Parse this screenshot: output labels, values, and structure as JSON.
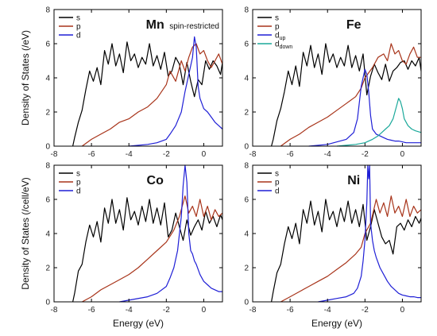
{
  "chart_data": [
    {
      "type": "line",
      "title": "Mn",
      "subtitle": "spin-restricted",
      "xlabel": "",
      "ylabel": "Density of States (/eV)",
      "xlim": [
        -8,
        1
      ],
      "ylim": [
        0,
        8
      ],
      "xticks": [
        "-8",
        "-6",
        "-4",
        "-2",
        "0"
      ],
      "yticks": [
        "0",
        "2",
        "4",
        "6",
        "8"
      ],
      "legend_position": "top-left",
      "series": [
        {
          "name": "s",
          "color": "#000000",
          "x": [
            -7.0,
            -6.9,
            -6.7,
            -6.5,
            -6.3,
            -6.1,
            -5.9,
            -5.7,
            -5.5,
            -5.3,
            -5.1,
            -4.9,
            -4.7,
            -4.5,
            -4.3,
            -4.1,
            -3.9,
            -3.7,
            -3.5,
            -3.3,
            -3.1,
            -2.9,
            -2.7,
            -2.5,
            -2.3,
            -2.1,
            -1.9,
            -1.7,
            -1.5,
            -1.3,
            -1.1,
            -0.9,
            -0.7,
            -0.5,
            -0.3,
            -0.1,
            0.1,
            0.3,
            0.5,
            0.7,
            0.9,
            1.0
          ],
          "y": [
            0.0,
            0.5,
            1.4,
            2.1,
            3.3,
            4.4,
            3.8,
            4.6,
            3.6,
            5.6,
            4.8,
            6.0,
            4.7,
            5.4,
            4.3,
            6.1,
            5.0,
            5.4,
            4.6,
            5.2,
            4.8,
            6.0,
            4.7,
            5.3,
            4.5,
            5.5,
            4.1,
            4.4,
            5.2,
            4.8,
            3.6,
            4.9,
            3.8,
            2.9,
            3.9,
            3.6,
            5.0,
            4.5,
            5.0,
            4.7,
            4.2,
            4.9
          ]
        },
        {
          "name": "p",
          "color": "#a8341a",
          "x": [
            -6.5,
            -6.0,
            -5.5,
            -5.0,
            -4.5,
            -4.0,
            -3.5,
            -3.0,
            -2.5,
            -2.0,
            -1.8,
            -1.5,
            -1.2,
            -1.0,
            -0.8,
            -0.6,
            -0.4,
            -0.2,
            0.0,
            0.2,
            0.4,
            0.6,
            0.8,
            1.0
          ],
          "y": [
            0.0,
            0.4,
            0.7,
            1.0,
            1.4,
            1.6,
            2.0,
            2.3,
            2.8,
            3.6,
            4.4,
            3.8,
            5.0,
            4.4,
            5.2,
            5.8,
            6.0,
            5.4,
            5.6,
            5.0,
            4.6,
            5.0,
            5.4,
            4.8
          ]
        },
        {
          "name": "d",
          "color": "#1f1fd6",
          "x": [
            -4.0,
            -3.0,
            -2.5,
            -2.0,
            -1.8,
            -1.5,
            -1.2,
            -1.0,
            -0.8,
            -0.6,
            -0.5,
            -0.4,
            -0.3,
            -0.2,
            -0.1,
            0.0,
            0.2,
            0.4,
            0.6,
            0.8,
            1.0
          ],
          "y": [
            0.0,
            0.1,
            0.2,
            0.4,
            0.7,
            1.2,
            2.0,
            3.2,
            4.2,
            5.2,
            6.4,
            5.8,
            3.5,
            2.8,
            2.5,
            2.2,
            2.0,
            1.7,
            1.4,
            1.2,
            1.0
          ]
        }
      ]
    },
    {
      "type": "line",
      "title": "Fe",
      "xlabel": "",
      "ylabel": "",
      "xlim": [
        -8,
        1
      ],
      "ylim": [
        0,
        8
      ],
      "xticks": [
        "-8",
        "-6",
        "-4",
        "-2",
        "0"
      ],
      "yticks": [
        "0",
        "2",
        "4",
        "6",
        "8"
      ],
      "legend_position": "top-left",
      "series": [
        {
          "name": "s",
          "color": "#000000",
          "x": [
            -7.0,
            -6.9,
            -6.7,
            -6.5,
            -6.3,
            -6.1,
            -5.9,
            -5.7,
            -5.5,
            -5.3,
            -5.1,
            -4.9,
            -4.7,
            -4.5,
            -4.3,
            -4.1,
            -3.9,
            -3.7,
            -3.5,
            -3.3,
            -3.1,
            -2.9,
            -2.7,
            -2.5,
            -2.3,
            -2.1,
            -1.9,
            -1.7,
            -1.5,
            -1.3,
            -1.1,
            -0.9,
            -0.7,
            -0.5,
            -0.3,
            -0.1,
            0.1,
            0.3,
            0.5,
            0.7,
            0.9,
            1.0
          ],
          "y": [
            0.0,
            0.4,
            1.5,
            2.2,
            3.2,
            4.4,
            3.6,
            4.7,
            3.5,
            5.5,
            4.7,
            5.9,
            4.6,
            5.4,
            4.2,
            6.0,
            4.9,
            5.4,
            4.6,
            5.2,
            4.7,
            5.9,
            4.6,
            5.3,
            4.4,
            5.4,
            3.0,
            4.1,
            4.8,
            4.3,
            3.9,
            4.8,
            3.8,
            4.4,
            4.6,
            4.9,
            5.0,
            4.5,
            5.0,
            4.7,
            5.2,
            4.4
          ]
        },
        {
          "name": "p",
          "color": "#a8341a",
          "x": [
            -6.5,
            -6.0,
            -5.5,
            -5.0,
            -4.5,
            -4.0,
            -3.5,
            -3.0,
            -2.5,
            -2.2,
            -2.0,
            -1.6,
            -1.3,
            -1.0,
            -0.8,
            -0.6,
            -0.4,
            -0.2,
            0.0,
            0.2,
            0.4,
            0.6,
            0.8,
            1.0
          ],
          "y": [
            0.0,
            0.4,
            0.7,
            1.1,
            1.4,
            1.7,
            2.1,
            2.5,
            2.9,
            3.4,
            4.0,
            4.6,
            5.2,
            5.4,
            5.0,
            6.0,
            5.4,
            5.6,
            5.0,
            4.8,
            5.4,
            5.8,
            5.2,
            5.2
          ]
        },
        {
          "name": "d",
          "subscript": "up",
          "color": "#1f1fd6",
          "x": [
            -5.0,
            -4.0,
            -3.0,
            -2.6,
            -2.4,
            -2.2,
            -2.0,
            -1.9,
            -1.8,
            -1.7,
            -1.6,
            -1.4,
            -1.2,
            -1.0,
            -0.8,
            -0.6,
            -0.4,
            -0.2,
            0.0,
            0.2,
            0.5,
            1.0
          ],
          "y": [
            0.0,
            0.1,
            0.4,
            0.8,
            1.6,
            3.5,
            4.5,
            4.2,
            3.2,
            1.8,
            1.0,
            0.7,
            0.6,
            0.5,
            0.4,
            0.35,
            0.3,
            0.3,
            0.25,
            0.2,
            0.2,
            0.2
          ]
        },
        {
          "name": "d",
          "subscript": "down",
          "color": "#1aa89a",
          "x": [
            -3.5,
            -3.0,
            -2.5,
            -2.0,
            -1.6,
            -1.3,
            -1.1,
            -0.9,
            -0.7,
            -0.5,
            -0.3,
            -0.2,
            -0.1,
            0.0,
            0.1,
            0.3,
            0.5,
            0.7,
            1.0
          ],
          "y": [
            0.0,
            0.05,
            0.1,
            0.2,
            0.4,
            0.6,
            0.8,
            1.0,
            1.2,
            1.6,
            2.4,
            2.8,
            2.6,
            2.2,
            1.6,
            1.2,
            1.0,
            0.9,
            0.8
          ]
        }
      ]
    },
    {
      "type": "line",
      "title": "Co",
      "xlabel": "Energy (eV)",
      "ylabel": "Density of States (/cell/eV)",
      "xlim": [
        -8,
        1
      ],
      "ylim": [
        0,
        8
      ],
      "xticks": [
        "-8",
        "-6",
        "-4",
        "-2",
        "0"
      ],
      "yticks": [
        "0",
        "2",
        "4",
        "6",
        "8"
      ],
      "legend_position": "top-left",
      "series": [
        {
          "name": "s",
          "color": "#000000",
          "x": [
            -7.0,
            -6.9,
            -6.7,
            -6.5,
            -6.3,
            -6.1,
            -5.9,
            -5.7,
            -5.5,
            -5.3,
            -5.1,
            -4.9,
            -4.7,
            -4.5,
            -4.3,
            -4.1,
            -3.9,
            -3.7,
            -3.5,
            -3.3,
            -3.1,
            -2.9,
            -2.7,
            -2.5,
            -2.3,
            -2.1,
            -1.9,
            -1.7,
            -1.5,
            -1.3,
            -1.1,
            -0.9,
            -0.7,
            -0.5,
            -0.3,
            -0.1,
            0.1,
            0.3,
            0.5,
            0.7,
            0.9,
            1.0
          ],
          "y": [
            0.0,
            0.5,
            1.8,
            2.2,
            3.5,
            4.5,
            3.8,
            4.7,
            3.5,
            5.5,
            4.6,
            6.0,
            4.6,
            5.4,
            4.2,
            6.1,
            4.8,
            5.3,
            4.5,
            5.6,
            4.7,
            6.0,
            4.6,
            5.5,
            4.5,
            5.8,
            3.8,
            4.2,
            5.2,
            4.4,
            3.6,
            4.8,
            3.9,
            4.4,
            4.8,
            4.2,
            5.3,
            4.6,
            5.0,
            4.4,
            5.1,
            4.8
          ]
        },
        {
          "name": "p",
          "color": "#a8341a",
          "x": [
            -6.5,
            -6.0,
            -5.5,
            -5.0,
            -4.5,
            -4.0,
            -3.5,
            -3.0,
            -2.5,
            -2.0,
            -1.6,
            -1.3,
            -1.0,
            -0.8,
            -0.6,
            -0.4,
            -0.2,
            0.0,
            0.2,
            0.4,
            0.6,
            0.8,
            1.0
          ],
          "y": [
            0.0,
            0.3,
            0.7,
            1.0,
            1.3,
            1.6,
            2.0,
            2.5,
            3.0,
            3.5,
            4.2,
            5.0,
            6.2,
            5.2,
            5.6,
            5.0,
            6.0,
            5.0,
            5.6,
            4.8,
            5.4,
            5.0,
            5.2
          ]
        },
        {
          "name": "d",
          "color": "#1f1fd6",
          "x": [
            -4.5,
            -4.0,
            -3.0,
            -2.5,
            -2.0,
            -1.8,
            -1.6,
            -1.4,
            -1.2,
            -1.1,
            -1.0,
            -0.9,
            -0.8,
            -0.7,
            -0.6,
            -0.5,
            -0.4,
            -0.2,
            0.0,
            0.2,
            0.4,
            0.6,
            0.8,
            1.0
          ],
          "y": [
            0.0,
            0.1,
            0.3,
            0.5,
            0.9,
            1.4,
            2.0,
            3.0,
            5.0,
            6.8,
            8.0,
            7.0,
            4.0,
            3.0,
            2.8,
            2.4,
            2.2,
            1.6,
            1.2,
            1.0,
            0.8,
            0.7,
            0.6,
            0.6
          ]
        }
      ]
    },
    {
      "type": "line",
      "title": "Ni",
      "xlabel": "Energy (eV)",
      "ylabel": "",
      "xlim": [
        -8,
        1
      ],
      "ylim": [
        0,
        8
      ],
      "xticks": [
        "-8",
        "-6",
        "-4",
        "-2",
        "0"
      ],
      "yticks": [
        "0",
        "2",
        "4",
        "6",
        "8"
      ],
      "legend_position": "top-left",
      "series": [
        {
          "name": "s",
          "color": "#000000",
          "x": [
            -7.0,
            -6.9,
            -6.7,
            -6.5,
            -6.3,
            -6.1,
            -5.9,
            -5.7,
            -5.5,
            -5.3,
            -5.1,
            -4.9,
            -4.7,
            -4.5,
            -4.3,
            -4.1,
            -3.9,
            -3.7,
            -3.5,
            -3.3,
            -3.1,
            -2.9,
            -2.7,
            -2.5,
            -2.3,
            -2.1,
            -1.9,
            -1.7,
            -1.5,
            -1.3,
            -1.1,
            -0.9,
            -0.7,
            -0.5,
            -0.3,
            -0.1,
            0.1,
            0.3,
            0.5,
            0.7,
            0.9,
            1.0
          ],
          "y": [
            0.0,
            0.6,
            1.7,
            2.2,
            3.4,
            4.4,
            3.7,
            4.6,
            3.4,
            5.4,
            4.6,
            5.9,
            4.5,
            5.3,
            4.1,
            6.0,
            4.8,
            5.3,
            4.4,
            5.5,
            4.7,
            5.9,
            4.6,
            5.4,
            4.4,
            5.7,
            3.6,
            4.4,
            5.4,
            4.6,
            3.8,
            3.4,
            3.6,
            2.8,
            4.4,
            4.6,
            4.2,
            4.8,
            4.4,
            5.0,
            4.6,
            4.9
          ]
        },
        {
          "name": "p",
          "color": "#a8341a",
          "x": [
            -6.5,
            -6.0,
            -5.5,
            -5.0,
            -4.5,
            -4.0,
            -3.5,
            -3.0,
            -2.5,
            -2.2,
            -2.0,
            -1.7,
            -1.4,
            -1.2,
            -1.0,
            -0.8,
            -0.6,
            -0.4,
            -0.2,
            0.0,
            0.2,
            0.4,
            0.6,
            0.8,
            1.0
          ],
          "y": [
            0.0,
            0.3,
            0.6,
            0.9,
            1.2,
            1.5,
            1.9,
            2.3,
            2.8,
            3.2,
            4.0,
            4.6,
            6.0,
            5.2,
            5.8,
            5.0,
            6.2,
            5.2,
            5.6,
            5.0,
            6.0,
            5.0,
            5.6,
            5.2,
            5.4
          ]
        },
        {
          "name": "d",
          "color": "#1f1fd6",
          "x": [
            -4.5,
            -4.0,
            -3.5,
            -3.0,
            -2.6,
            -2.4,
            -2.2,
            -2.1,
            -2.0,
            -1.9,
            -1.85,
            -1.8,
            -1.75,
            -1.7,
            -1.6,
            -1.5,
            -1.4,
            -1.2,
            -1.0,
            -0.8,
            -0.6,
            -0.4,
            -0.2,
            0.0,
            0.2,
            0.4,
            0.6,
            0.8,
            1.0
          ],
          "y": [
            0.0,
            0.1,
            0.2,
            0.3,
            0.5,
            0.8,
            1.5,
            2.4,
            3.6,
            5.8,
            8.0,
            7.2,
            8.0,
            4.6,
            3.6,
            3.0,
            2.6,
            2.0,
            1.6,
            1.2,
            0.9,
            0.7,
            0.5,
            0.4,
            0.35,
            0.3,
            0.3,
            0.25,
            0.25
          ]
        }
      ]
    }
  ]
}
